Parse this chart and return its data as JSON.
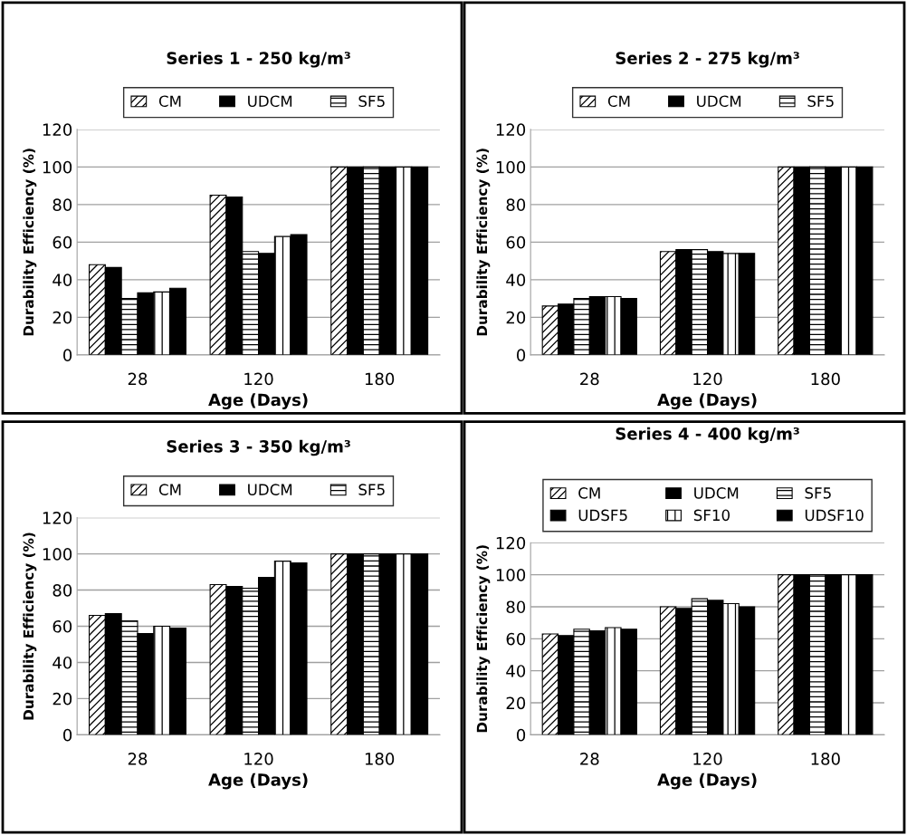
{
  "chart_data": [
    {
      "type": "bar",
      "title": "Series 1 - 250 kg/m³",
      "xlabel": "Age (Days)",
      "ylabel": "Durability Efficiency (%)",
      "categories": [
        "28",
        "120",
        "180"
      ],
      "ylim": [
        0,
        120
      ],
      "yticks": [
        0,
        20,
        40,
        60,
        80,
        100,
        120
      ],
      "grid": "y",
      "legend": "top",
      "series": [
        {
          "name": "CM",
          "color": "#000000",
          "values": [
            48,
            85,
            100
          ]
        },
        {
          "name": "UDCM",
          "color": "#000000",
          "values": [
            46.5,
            84,
            100
          ]
        },
        {
          "name": "SF5",
          "color": "#000000",
          "values": [
            30,
            55,
            100
          ]
        },
        {
          "color": "#000000",
          "values": [
            33,
            54,
            100
          ]
        },
        {
          "color": "#000000",
          "values": [
            33.5,
            63,
            100
          ]
        },
        {
          "color": "#000000",
          "values": [
            35.5,
            64,
            100
          ]
        }
      ]
    },
    {
      "type": "bar",
      "title": "Series 2 - 275 kg/m³",
      "xlabel": "Age (Days)",
      "ylabel": "Durability Efficiency (%)",
      "categories": [
        "28",
        "120",
        "180"
      ],
      "ylim": [
        0,
        120
      ],
      "yticks": [
        0,
        20,
        40,
        60,
        80,
        100,
        120
      ],
      "grid": "y",
      "legend": "top",
      "series": [
        {
          "name": "CM",
          "color": "#000000",
          "values": [
            26,
            55,
            100
          ]
        },
        {
          "name": "UDCM",
          "color": "#000000",
          "values": [
            27,
            56,
            100
          ]
        },
        {
          "name": "SF5",
          "color": "#000000",
          "values": [
            30,
            56,
            100
          ]
        },
        {
          "color": "#000000",
          "values": [
            31,
            55,
            100
          ]
        },
        {
          "color": "#000000",
          "values": [
            31,
            54,
            100
          ]
        },
        {
          "color": "#000000",
          "values": [
            30,
            54,
            100
          ]
        }
      ]
    },
    {
      "type": "bar",
      "title": "Series 3 - 350 kg/m³",
      "xlabel": "Age (Days)",
      "ylabel": "Durability Efficiency (%)",
      "categories": [
        "28",
        "120",
        "180"
      ],
      "ylim": [
        0,
        120
      ],
      "yticks": [
        0,
        20,
        40,
        60,
        80,
        100,
        120
      ],
      "grid": "y",
      "legend": "top",
      "series": [
        {
          "name": "CM",
          "color": "#000000",
          "values": [
            66,
            83,
            100
          ]
        },
        {
          "name": "UDCM",
          "color": "#000000",
          "values": [
            67,
            82,
            100
          ]
        },
        {
          "name": "SF5",
          "color": "#000000",
          "values": [
            63,
            81,
            100
          ]
        },
        {
          "color": "#000000",
          "values": [
            56,
            87,
            100
          ]
        },
        {
          "color": "#000000",
          "values": [
            60,
            96,
            100
          ]
        },
        {
          "color": "#000000",
          "values": [
            59,
            95,
            100
          ]
        }
      ]
    },
    {
      "type": "bar",
      "title": "Series 4 - 400 kg/m³",
      "xlabel": "Age (Days)",
      "ylabel": "Durability Efficiency (%)",
      "categories": [
        "28",
        "120",
        "180"
      ],
      "ylim": [
        0,
        120
      ],
      "yticks": [
        0,
        20,
        40,
        60,
        80,
        100,
        120
      ],
      "grid": "y",
      "legend": "top",
      "series": [
        {
          "name": "CM",
          "color": "#000000",
          "values": [
            63,
            80,
            100
          ]
        },
        {
          "name": "UDCM",
          "color": "#000000",
          "values": [
            62,
            79,
            100
          ]
        },
        {
          "name": "SF5",
          "color": "#000000",
          "values": [
            66,
            85,
            100
          ]
        },
        {
          "name": "UDSF5",
          "color": "#000000",
          "values": [
            65,
            84,
            100
          ]
        },
        {
          "name": "SF10",
          "color": "#000000",
          "values": [
            67,
            82,
            100
          ]
        },
        {
          "name": "UDSF10",
          "color": "#000000",
          "values": [
            66,
            80,
            100
          ]
        }
      ]
    }
  ]
}
